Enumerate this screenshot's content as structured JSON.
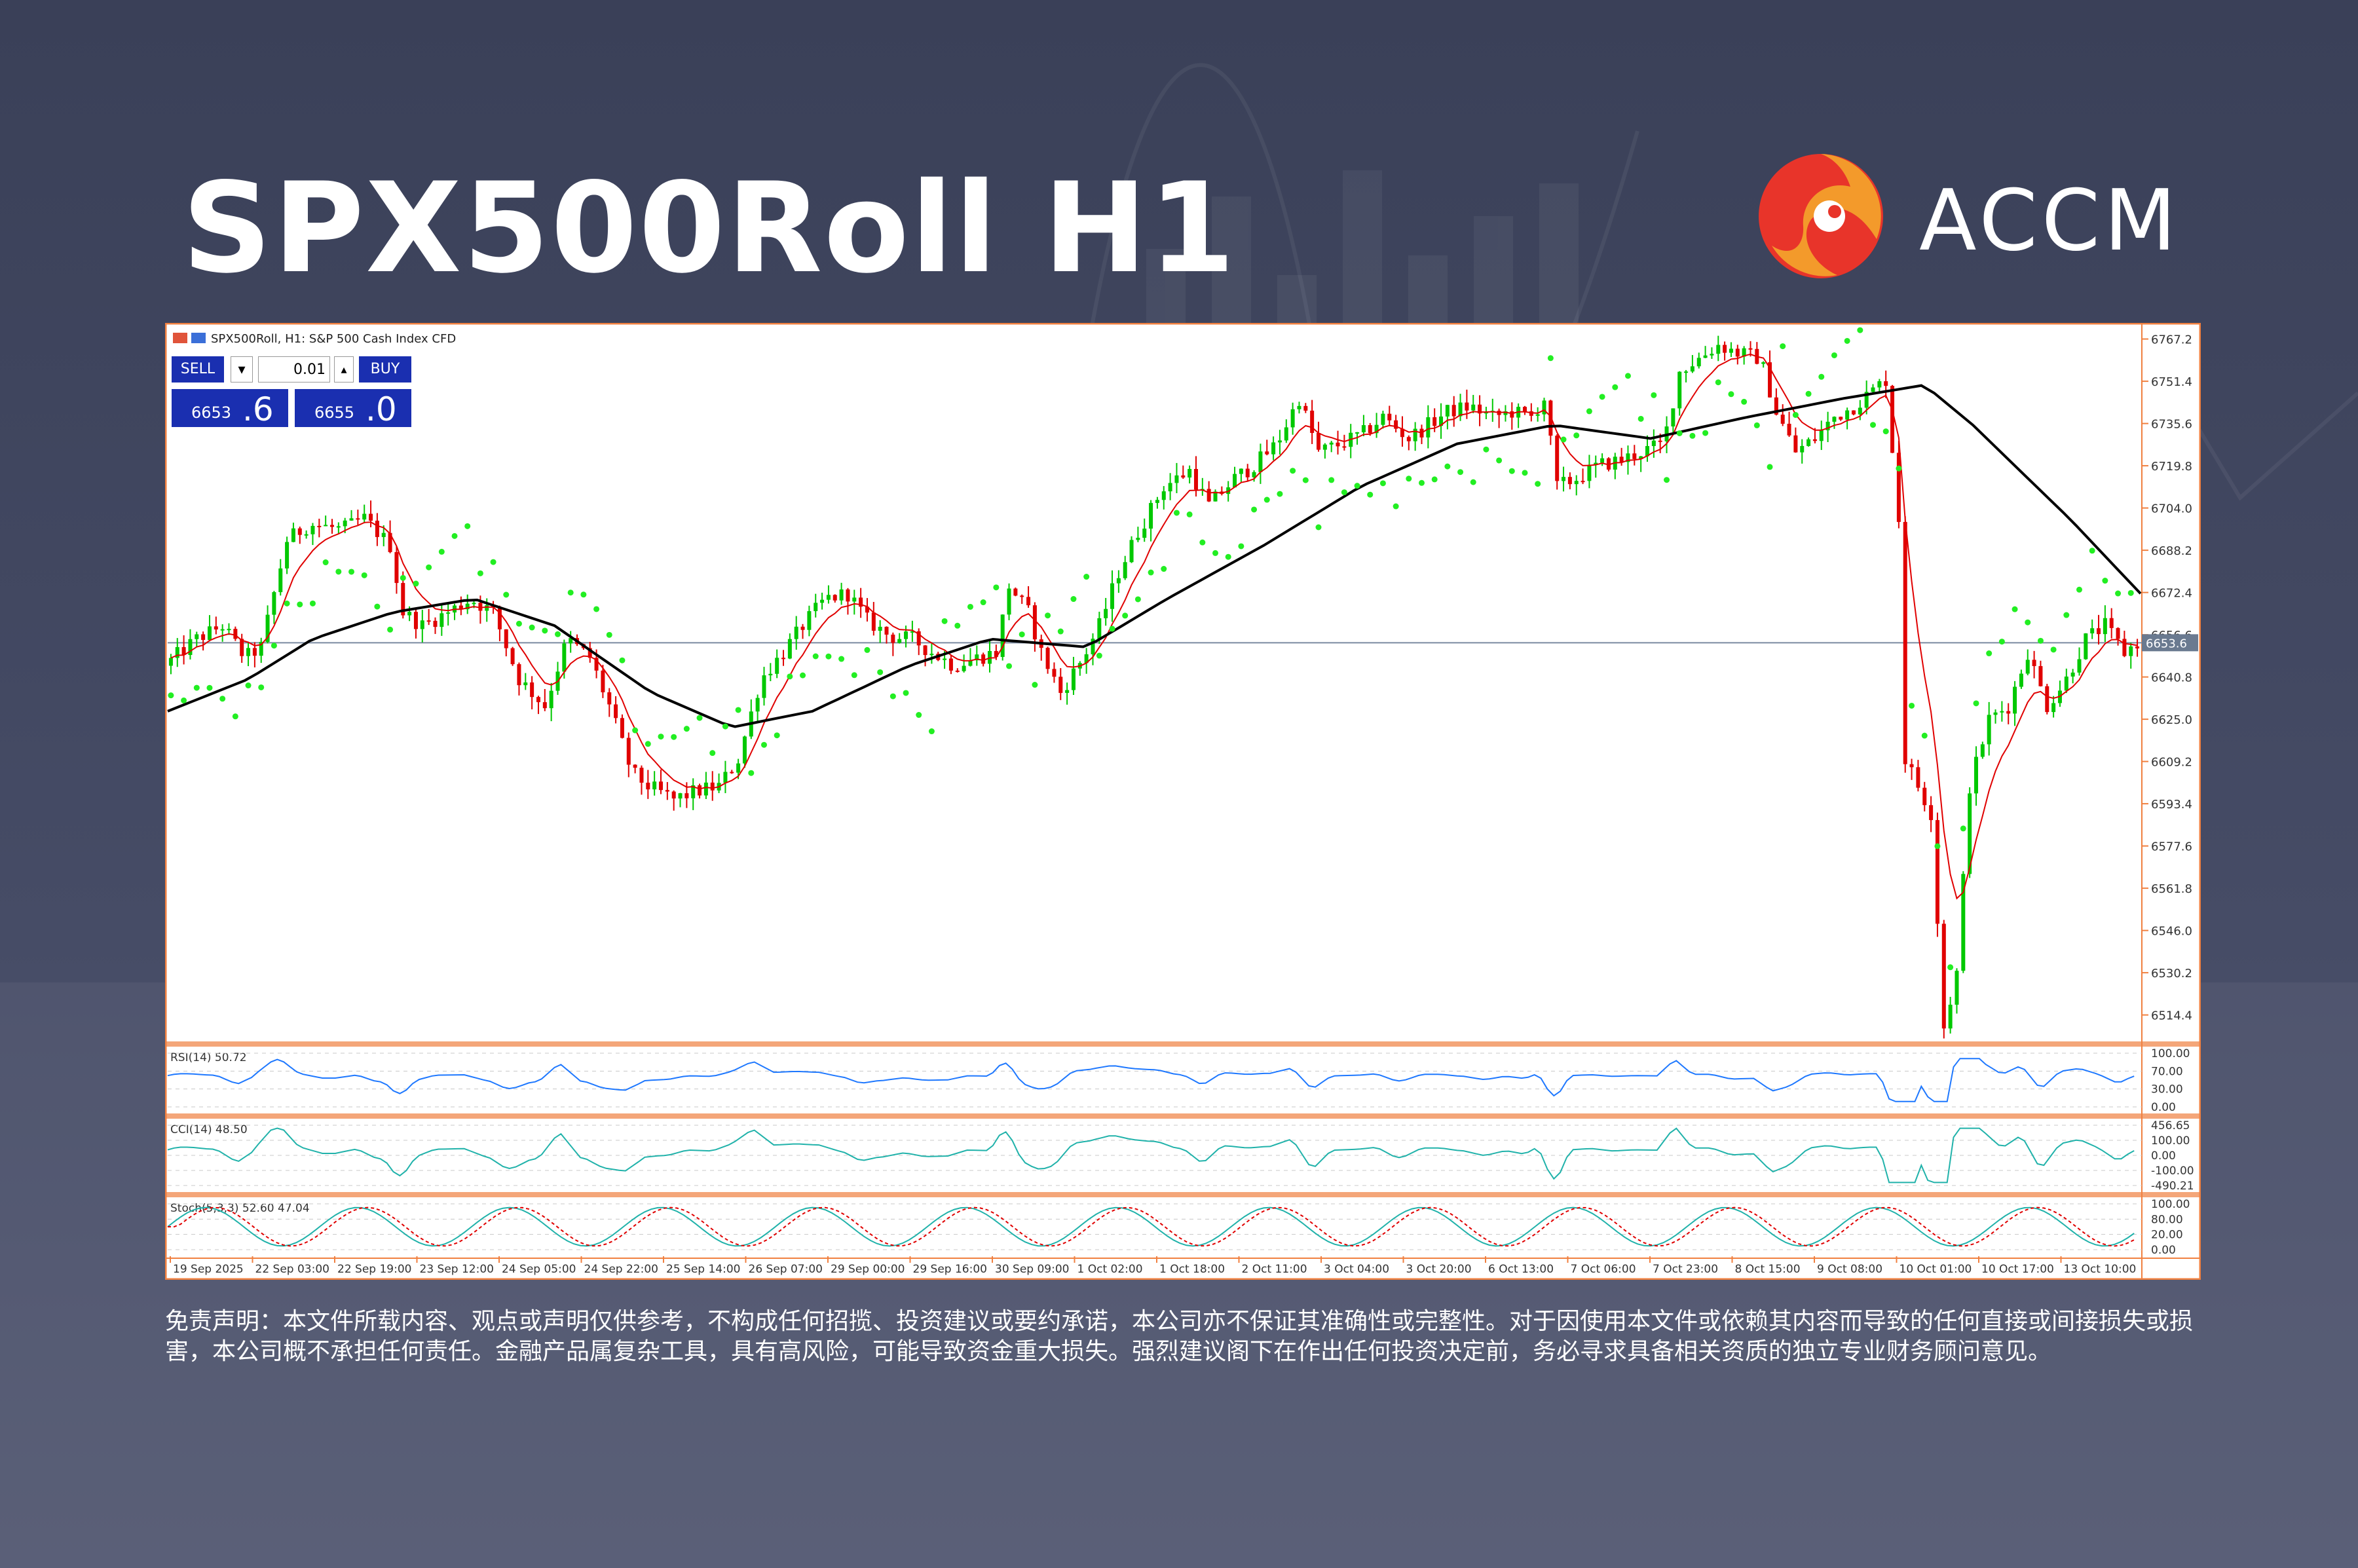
{
  "header": {
    "title": "SPX500Roll H1"
  },
  "brand": {
    "name": "ACCM",
    "primary_color": "#e8342a",
    "secondary_color": "#f39a2b"
  },
  "trade_panel": {
    "sell_label": "SELL",
    "buy_label": "BUY",
    "lot_size": "0.01",
    "sell_price_prefix": "6653",
    "sell_price_suffix": ".6",
    "buy_price_prefix": "6655",
    "buy_price_suffix": ".0"
  },
  "chart_data": {
    "type": "candlestick",
    "title": "SPX500Roll, H1:  S&P 500 Cash Index CFD",
    "current_price": "6653.6",
    "y_ticks": [
      "6767.2",
      "6751.4",
      "6735.6",
      "6719.8",
      "6704.0",
      "6688.2",
      "6672.4",
      "6656.6",
      "6640.8",
      "6625.0",
      "6609.2",
      "6593.4",
      "6577.6",
      "6561.8",
      "6546.0",
      "6530.2",
      "6514.4"
    ],
    "ylim": [
      6505,
      6772
    ],
    "x_ticks": [
      "19 Sep 2025",
      "22 Sep 03:00",
      "22 Sep 19:00",
      "23 Sep 12:00",
      "24 Sep 05:00",
      "24 Sep 22:00",
      "25 Sep 14:00",
      "26 Sep 07:00",
      "29 Sep 00:00",
      "29 Sep 16:00",
      "30 Sep 09:00",
      "1 Oct 02:00",
      "1 Oct 18:00",
      "2 Oct 11:00",
      "3 Oct 04:00",
      "3 Oct 20:00",
      "6 Oct 13:00",
      "7 Oct 06:00",
      "7 Oct 23:00",
      "8 Oct 15:00",
      "9 Oct 08:00",
      "10 Oct 01:00",
      "10 Oct 17:00",
      "13 Oct 10:00"
    ],
    "price_path": [
      [
        0,
        6645
      ],
      [
        10,
        6655
      ],
      [
        18,
        6660
      ],
      [
        25,
        6648
      ],
      [
        30,
        6652
      ],
      [
        38,
        6692
      ],
      [
        45,
        6698
      ],
      [
        55,
        6696
      ],
      [
        62,
        6700
      ],
      [
        70,
        6690
      ],
      [
        74,
        6665
      ],
      [
        80,
        6660
      ],
      [
        88,
        6665
      ],
      [
        95,
        6670
      ],
      [
        102,
        6665
      ],
      [
        110,
        6640
      ],
      [
        118,
        6630
      ],
      [
        125,
        6655
      ],
      [
        132,
        6648
      ],
      [
        138,
        6630
      ],
      [
        145,
        6605
      ],
      [
        150,
        6600
      ],
      [
        158,
        6595
      ],
      [
        165,
        6598
      ],
      [
        172,
        6600
      ],
      [
        178,
        6610
      ],
      [
        185,
        6640
      ],
      [
        192,
        6650
      ],
      [
        198,
        6660
      ],
      [
        205,
        6670
      ],
      [
        212,
        6672
      ],
      [
        218,
        6662
      ],
      [
        225,
        6656
      ],
      [
        232,
        6655
      ],
      [
        238,
        6650
      ],
      [
        245,
        6645
      ],
      [
        252,
        6648
      ],
      [
        258,
        6650
      ],
      [
        262,
        6675
      ],
      [
        268,
        6665
      ],
      [
        272,
        6650
      ],
      [
        278,
        6635
      ],
      [
        285,
        6648
      ],
      [
        290,
        6660
      ],
      [
        296,
        6680
      ],
      [
        302,
        6695
      ],
      [
        310,
        6712
      ],
      [
        318,
        6718
      ],
      [
        324,
        6705
      ],
      [
        332,
        6715
      ],
      [
        338,
        6720
      ],
      [
        345,
        6728
      ],
      [
        352,
        6745
      ],
      [
        358,
        6725
      ],
      [
        365,
        6728
      ],
      [
        372,
        6732
      ],
      [
        378,
        6738
      ],
      [
        386,
        6730
      ],
      [
        392,
        6735
      ],
      [
        398,
        6740
      ],
      [
        405,
        6742
      ],
      [
        412,
        6738
      ],
      [
        418,
        6740
      ],
      [
        424,
        6738
      ],
      [
        428,
        6745
      ],
      [
        432,
        6712
      ],
      [
        438,
        6715
      ],
      [
        445,
        6720
      ],
      [
        452,
        6722
      ],
      [
        458,
        6725
      ],
      [
        465,
        6728
      ],
      [
        470,
        6755
      ],
      [
        476,
        6760
      ],
      [
        482,
        6765
      ],
      [
        488,
        6762
      ],
      [
        495,
        6760
      ],
      [
        500,
        6740
      ],
      [
        506,
        6725
      ],
      [
        512,
        6730
      ],
      [
        518,
        6738
      ],
      [
        524,
        6742
      ],
      [
        530,
        6748
      ],
      [
        534,
        6752
      ],
      [
        538,
        6700
      ],
      [
        540,
        6610
      ],
      [
        544,
        6600
      ],
      [
        548,
        6590
      ],
      [
        552,
        6510
      ],
      [
        556,
        6530
      ],
      [
        560,
        6600
      ],
      [
        566,
        6625
      ],
      [
        572,
        6630
      ],
      [
        578,
        6650
      ],
      [
        584,
        6630
      ],
      [
        590,
        6640
      ],
      [
        596,
        6655
      ],
      [
        602,
        6660
      ],
      [
        608,
        6650
      ],
      [
        612,
        6653.6
      ]
    ],
    "ma_slow_path": [
      [
        0,
        6628
      ],
      [
        25,
        6640
      ],
      [
        45,
        6655
      ],
      [
        70,
        6665
      ],
      [
        95,
        6670
      ],
      [
        120,
        6660
      ],
      [
        150,
        6635
      ],
      [
        175,
        6622
      ],
      [
        200,
        6628
      ],
      [
        230,
        6645
      ],
      [
        255,
        6655
      ],
      [
        285,
        6652
      ],
      [
        310,
        6670
      ],
      [
        340,
        6690
      ],
      [
        370,
        6712
      ],
      [
        400,
        6728
      ],
      [
        430,
        6735
      ],
      [
        460,
        6730
      ],
      [
        490,
        6738
      ],
      [
        520,
        6745
      ],
      [
        545,
        6750
      ],
      [
        560,
        6735
      ],
      [
        590,
        6700
      ],
      [
        612,
        6672
      ]
    ],
    "indicators": [
      {
        "name": "RSI(14)",
        "value": "50.72",
        "ticks": [
          "100.00",
          "70.00",
          "30.00",
          "0.00"
        ]
      },
      {
        "name": "CCI(14)",
        "value": "48.50",
        "ticks": [
          "456.65",
          "100.00",
          "0.00",
          "-100.00",
          "-490.21"
        ]
      },
      {
        "name": "Stoch(5,3,3)",
        "values": "52.60 47.04",
        "ticks": [
          "100.00",
          "80.00",
          "20.00",
          "0.00"
        ]
      }
    ],
    "colors": {
      "bull": "#00c800",
      "bear": "#e00000",
      "ma_fast": "#e00000",
      "ma_slow": "#000000",
      "sar": "#22ee22",
      "rsi": "#1e78ff",
      "cci": "#20b2aa",
      "axis": "#f08040"
    }
  },
  "disclaimer": "免责声明：本文件所载内容、观点或声明仅供参考，不构成任何招揽、投资建议或要约承诺，本公司亦不保证其准确性或完整性。对于因使用本文件或依赖其内容而导致的任何直接或间接损失或损害，本公司概不承担任何责任。金融产品属复杂工具，具有高风险，可能导致资金重大损失。强烈建议阁下在作出任何投资决定前，务必寻求具备相关资质的独立专业财务顾问意见。"
}
